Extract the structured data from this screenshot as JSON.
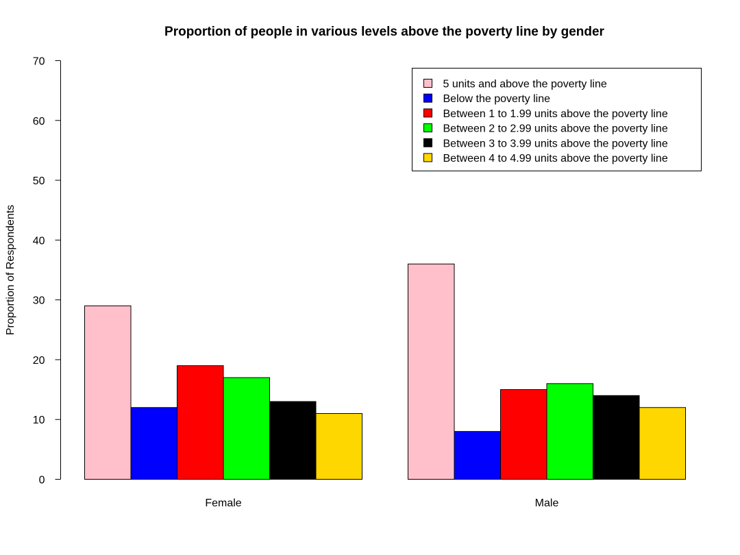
{
  "chart_data": {
    "type": "bar",
    "title": "Proportion of people in various levels above the poverty line by gender",
    "xlabel": "",
    "ylabel": "Proportion of Respondents",
    "ylim": [
      0,
      70
    ],
    "yticks": [
      0,
      10,
      20,
      30,
      40,
      50,
      60,
      70
    ],
    "categories": [
      "Female",
      "Male"
    ],
    "grid": false,
    "legend_position": "top-right",
    "series": [
      {
        "name": "5 units and above the poverty line",
        "color": "#FFC0CB",
        "values": [
          29,
          36
        ]
      },
      {
        "name": "Below the poverty line",
        "color": "#0000FF",
        "values": [
          12,
          8
        ]
      },
      {
        "name": "Between 1 to 1.99 units above the poverty line",
        "color": "#FF0000",
        "values": [
          19,
          15
        ]
      },
      {
        "name": "Between 2 to 2.99 units above the poverty line",
        "color": "#00FF00",
        "values": [
          17,
          16
        ]
      },
      {
        "name": "Between 3 to 3.99 units above the poverty line",
        "color": "#000000",
        "values": [
          13,
          14
        ]
      },
      {
        "name": "Between 4 to 4.99 units above the poverty line",
        "color": "#FFD700",
        "values": [
          11,
          12
        ]
      }
    ]
  }
}
